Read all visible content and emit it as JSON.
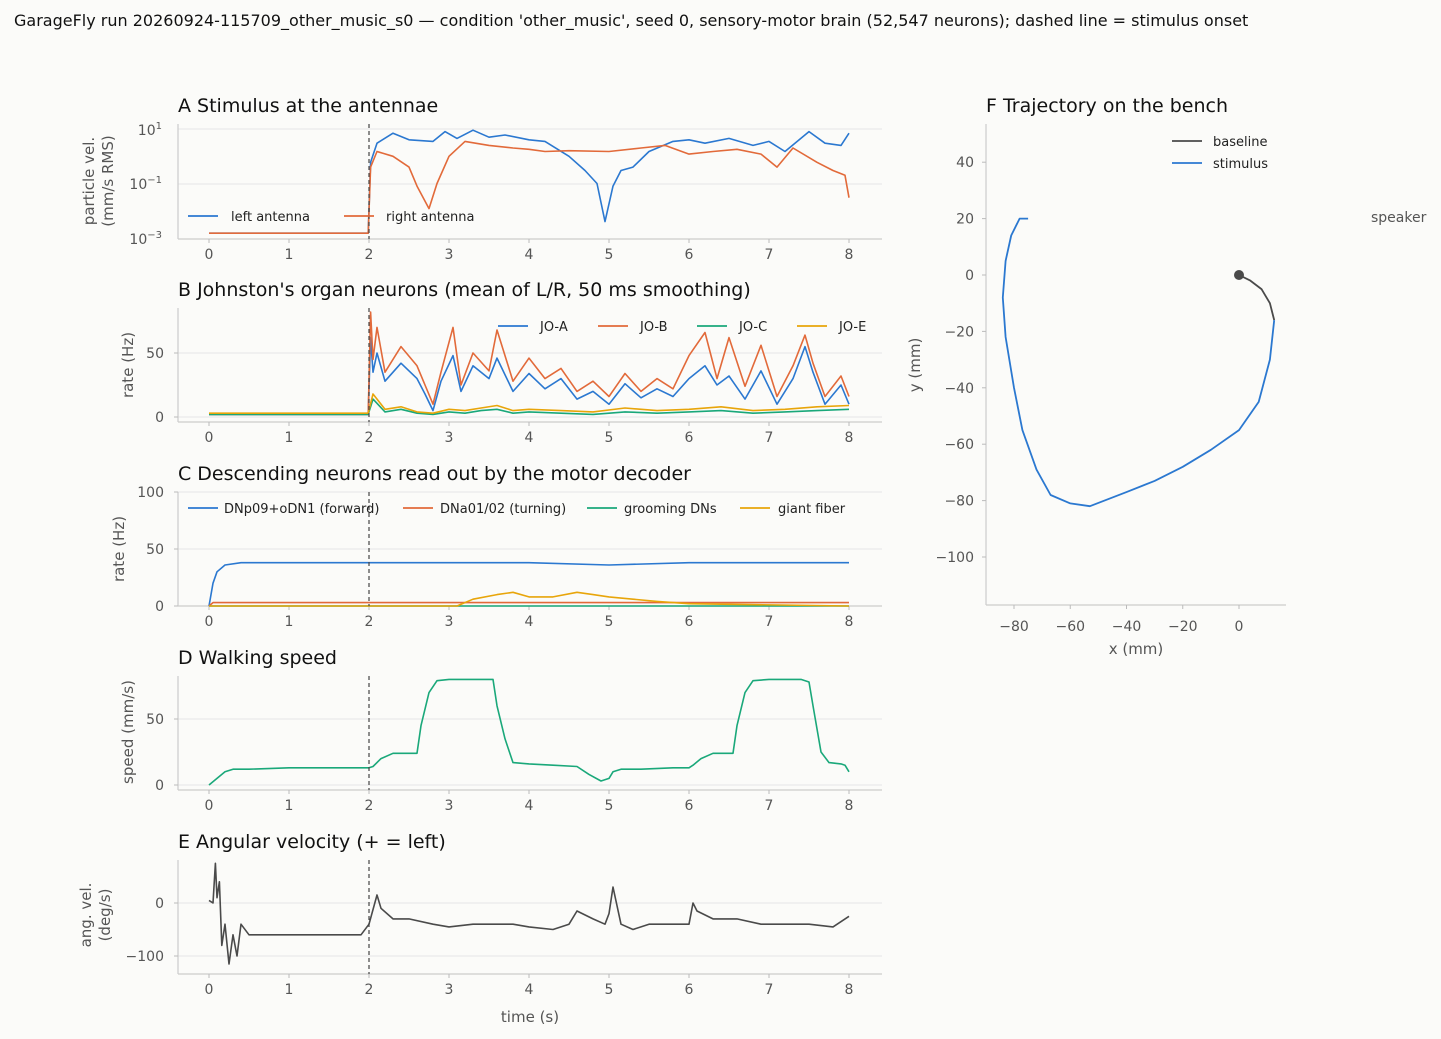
{
  "suptitle": "GarageFly run 20260924-115709_other_music_s0 — condition 'other_music', seed 0, sensory-motor brain (52,547 neurons); dashed line = stimulus onset",
  "colors": {
    "blue": "#2b78d0",
    "orange": "#e26a3a",
    "green": "#1aa87a",
    "yellow": "#e8a50a",
    "dark": "#4a4a4a",
    "grid": "#e6e6e6"
  },
  "chart_data": [
    {
      "id": "A",
      "type": "line",
      "title": "A  Stimulus at the antennae",
      "ylabel_lines": [
        "particle vel.",
        "(mm/s RMS)"
      ],
      "yscale": "log",
      "ylim": [
        0.001,
        10
      ],
      "yticks": [
        "10^1",
        "10^-1",
        "10^-3"
      ],
      "xlim": [
        0,
        8
      ],
      "xticks": [
        "0",
        "1",
        "2",
        "3",
        "4",
        "5",
        "6",
        "7",
        "8"
      ],
      "stimulus_onset_s": 2,
      "legend_location": "lower left",
      "series": [
        {
          "name": "left antenna",
          "color": "#2b78d0",
          "x": [
            0,
            1.99,
            2.02,
            2.1,
            2.3,
            2.5,
            2.8,
            2.95,
            3.1,
            3.3,
            3.5,
            3.7,
            4,
            4.2,
            4.5,
            4.7,
            4.85,
            4.95,
            5.05,
            5.15,
            5.3,
            5.5,
            5.8,
            6,
            6.2,
            6.5,
            6.8,
            7,
            7.2,
            7.5,
            7.7,
            7.9,
            8.0
          ],
          "y": [
            0.0015,
            0.0015,
            0.6,
            3,
            7,
            4,
            3.5,
            8,
            4.5,
            9,
            5,
            6,
            4,
            3.5,
            1,
            0.3,
            0.1,
            0.004,
            0.08,
            0.3,
            0.4,
            1.5,
            3.5,
            4,
            3,
            4.5,
            2.5,
            3.5,
            1.5,
            8,
            3,
            2.5,
            7
          ]
        },
        {
          "name": "right antenna",
          "color": "#e26a3a",
          "x": [
            0,
            1.99,
            2.02,
            2.1,
            2.3,
            2.5,
            2.6,
            2.75,
            2.85,
            3.0,
            3.2,
            3.5,
            3.8,
            4.0,
            4.2,
            4.5,
            5,
            5.4,
            5.7,
            6,
            6.3,
            6.6,
            6.9,
            7.1,
            7.3,
            7.6,
            7.8,
            7.95,
            8.0
          ],
          "y": [
            0.0015,
            0.0015,
            0.4,
            1.5,
            1,
            0.4,
            0.08,
            0.012,
            0.1,
            1,
            3.5,
            2.5,
            2,
            1.8,
            1.5,
            1.6,
            1.5,
            2,
            2.5,
            1.2,
            1.5,
            1.8,
            1.2,
            0.4,
            2,
            0.6,
            0.3,
            0.2,
            0.03
          ]
        }
      ]
    },
    {
      "id": "B",
      "type": "line",
      "title": "B  Johnston's organ neurons (mean of L/R, 50 ms smoothing)",
      "ylabel": "rate (Hz)",
      "ylim": [
        0,
        85
      ],
      "yticks": [
        0,
        50
      ],
      "xlim": [
        0,
        8
      ],
      "xticks": [
        "0",
        "1",
        "2",
        "3",
        "4",
        "5",
        "6",
        "7",
        "8"
      ],
      "stimulus_onset_s": 2,
      "legend_location": "upper right",
      "series": [
        {
          "name": "JO-A",
          "color": "#2b78d0",
          "x": [
            0,
            1.99,
            2.02,
            2.05,
            2.1,
            2.2,
            2.4,
            2.6,
            2.7,
            2.8,
            2.9,
            3.05,
            3.15,
            3.3,
            3.5,
            3.6,
            3.8,
            4,
            4.2,
            4.4,
            4.6,
            4.8,
            5,
            5.2,
            5.4,
            5.6,
            5.8,
            6,
            6.2,
            6.35,
            6.5,
            6.7,
            6.9,
            7.1,
            7.3,
            7.45,
            7.55,
            7.7,
            7.9,
            8.0
          ],
          "y": [
            2,
            2,
            62,
            35,
            50,
            28,
            42,
            30,
            18,
            5,
            28,
            48,
            20,
            40,
            30,
            46,
            20,
            34,
            22,
            30,
            14,
            20,
            10,
            26,
            15,
            22,
            16,
            30,
            40,
            25,
            32,
            14,
            36,
            10,
            30,
            55,
            35,
            10,
            25,
            10
          ]
        },
        {
          "name": "JO-B",
          "color": "#e26a3a",
          "x": [
            0,
            1.99,
            2.02,
            2.05,
            2.1,
            2.2,
            2.4,
            2.6,
            2.7,
            2.8,
            2.9,
            3.05,
            3.15,
            3.3,
            3.5,
            3.6,
            3.8,
            4,
            4.2,
            4.4,
            4.6,
            4.8,
            5,
            5.2,
            5.4,
            5.6,
            5.8,
            6,
            6.2,
            6.35,
            6.5,
            6.7,
            6.9,
            7.1,
            7.3,
            7.45,
            7.55,
            7.7,
            7.9,
            8.0
          ],
          "y": [
            2,
            2,
            82,
            45,
            70,
            35,
            55,
            40,
            25,
            10,
            35,
            70,
            25,
            50,
            36,
            68,
            28,
            46,
            30,
            38,
            20,
            28,
            16,
            34,
            20,
            30,
            22,
            48,
            66,
            30,
            62,
            24,
            56,
            16,
            40,
            64,
            42,
            16,
            32,
            16
          ]
        },
        {
          "name": "JO-C",
          "color": "#1aa87a",
          "x": [
            0,
            1.99,
            2.05,
            2.2,
            2.4,
            2.6,
            2.8,
            3.0,
            3.2,
            3.4,
            3.6,
            3.8,
            4.0,
            4.4,
            4.8,
            5.2,
            5.6,
            6.0,
            6.4,
            6.8,
            7.2,
            7.6,
            8.0
          ],
          "y": [
            2,
            2,
            14,
            4,
            6,
            3,
            2,
            4,
            3,
            5,
            6,
            3,
            4,
            3,
            2,
            4,
            3,
            4,
            5,
            3,
            4,
            5,
            6
          ]
        },
        {
          "name": "JO-E",
          "color": "#e8a50a",
          "x": [
            0,
            1.99,
            2.05,
            2.2,
            2.4,
            2.6,
            2.8,
            3.0,
            3.2,
            3.4,
            3.6,
            3.8,
            4.0,
            4.4,
            4.8,
            5.2,
            5.6,
            6.0,
            6.4,
            6.8,
            7.2,
            7.6,
            8.0
          ],
          "y": [
            3,
            3,
            18,
            6,
            8,
            4,
            3,
            6,
            5,
            7,
            9,
            5,
            6,
            5,
            4,
            7,
            5,
            6,
            8,
            5,
            6,
            8,
            9
          ]
        }
      ]
    },
    {
      "id": "C",
      "type": "line",
      "title": "C  Descending neurons read out by the motor decoder",
      "ylabel": "rate (Hz)",
      "ylim": [
        0,
        100
      ],
      "yticks": [
        0,
        50,
        100
      ],
      "xlim": [
        0,
        8
      ],
      "xticks": [
        "0",
        "1",
        "2",
        "3",
        "4",
        "5",
        "6",
        "7",
        "8"
      ],
      "stimulus_onset_s": 2,
      "legend_location": "upper center",
      "series": [
        {
          "name": "DNp09+oDN1 (forward)",
          "color": "#2b78d0",
          "x": [
            0,
            0.05,
            0.1,
            0.2,
            0.4,
            1,
            2,
            3,
            4,
            5,
            6,
            7,
            8
          ],
          "y": [
            0,
            20,
            30,
            36,
            38,
            38,
            38,
            38,
            38,
            36,
            38,
            38,
            38
          ]
        },
        {
          "name": "DNa01/02 (turning)",
          "color": "#e26a3a",
          "x": [
            0,
            0.05,
            0.1,
            2,
            3,
            4,
            5,
            6,
            7,
            8
          ],
          "y": [
            0,
            3,
            3,
            3,
            3,
            3,
            3,
            3,
            3,
            3
          ]
        },
        {
          "name": "grooming DNs",
          "color": "#1aa87a",
          "x": [
            0,
            8
          ],
          "y": [
            0,
            0
          ]
        },
        {
          "name": "giant fiber",
          "color": "#e8a50a",
          "x": [
            0,
            3.1,
            3.3,
            3.6,
            3.8,
            4.0,
            4.3,
            4.6,
            4.8,
            5.0,
            5.3,
            5.6,
            6.0,
            8
          ],
          "y": [
            0,
            0,
            6,
            10,
            12,
            8,
            8,
            12,
            10,
            8,
            6,
            4,
            2,
            0
          ]
        }
      ]
    },
    {
      "id": "D",
      "type": "line",
      "title": "D  Walking speed",
      "ylabel": "speed (mm/s)",
      "ylim": [
        0,
        85
      ],
      "yticks": [
        0,
        50
      ],
      "xlim": [
        0,
        8
      ],
      "xticks": [
        "0",
        "1",
        "2",
        "3",
        "4",
        "5",
        "6",
        "7",
        "8"
      ],
      "stimulus_onset_s": 2,
      "series": [
        {
          "name": "",
          "color": "#1aa87a",
          "x": [
            0,
            0.1,
            0.2,
            0.3,
            0.5,
            1,
            1.5,
            2,
            2.05,
            2.15,
            2.3,
            2.5,
            2.6,
            2.65,
            2.75,
            2.85,
            3.0,
            3.4,
            3.55,
            3.6,
            3.7,
            3.8,
            4.0,
            4.3,
            4.6,
            4.75,
            4.9,
            5.0,
            5.05,
            5.15,
            5.4,
            5.8,
            6.0,
            6.05,
            6.15,
            6.3,
            6.55,
            6.6,
            6.7,
            6.8,
            7.0,
            7.4,
            7.5,
            7.55,
            7.65,
            7.75,
            7.9,
            7.95,
            8.0
          ],
          "y": [
            0,
            5,
            10,
            12,
            12,
            13,
            13,
            13,
            14,
            20,
            24,
            24,
            24,
            45,
            70,
            79,
            80,
            80,
            80,
            60,
            35,
            17,
            16,
            15,
            14,
            8,
            3,
            5,
            10,
            12,
            12,
            13,
            13,
            15,
            20,
            24,
            24,
            45,
            70,
            79,
            80,
            80,
            78,
            60,
            25,
            17,
            16,
            15,
            10
          ]
        }
      ]
    },
    {
      "id": "E",
      "type": "line",
      "title": "E  Angular velocity (+ = left)",
      "ylabel_lines": [
        "ang. vel.",
        "(deg/s)"
      ],
      "ylim": [
        -130,
        80
      ],
      "yticks": [
        0,
        -100
      ],
      "xlabel": "time (s)",
      "xlim": [
        0,
        8
      ],
      "xticks": [
        "0",
        "1",
        "2",
        "3",
        "4",
        "5",
        "6",
        "7",
        "8"
      ],
      "stimulus_onset_s": 2,
      "series": [
        {
          "name": "",
          "color": "#4a4a4a",
          "x": [
            0,
            0.05,
            0.08,
            0.1,
            0.13,
            0.16,
            0.2,
            0.25,
            0.3,
            0.35,
            0.4,
            0.5,
            1,
            1.5,
            1.9,
            2.0,
            2.1,
            2.15,
            2.3,
            2.5,
            2.8,
            3,
            3.3,
            3.5,
            3.8,
            4,
            4.3,
            4.5,
            4.6,
            4.8,
            4.95,
            5.0,
            5.05,
            5.15,
            5.3,
            5.5,
            6.0,
            6.05,
            6.1,
            6.3,
            6.6,
            6.9,
            7.2,
            7.5,
            7.8,
            8.0
          ],
          "y": [
            5,
            0,
            75,
            10,
            40,
            -80,
            -40,
            -115,
            -60,
            -100,
            -40,
            -60,
            -60,
            -60,
            -60,
            -40,
            15,
            -10,
            -30,
            -30,
            -40,
            -45,
            -40,
            -40,
            -40,
            -45,
            -50,
            -40,
            -15,
            -30,
            -40,
            -20,
            30,
            -40,
            -50,
            -40,
            -40,
            0,
            -15,
            -30,
            -30,
            -40,
            -40,
            -40,
            -45,
            -25
          ]
        }
      ]
    },
    {
      "id": "F",
      "type": "line",
      "title": "F  Trajectory on the bench",
      "xlabel": "x (mm)",
      "ylabel": "y (mm)",
      "xlim": [
        -88,
        17
      ],
      "ylim": [
        -117,
        55
      ],
      "xticks": [
        -80,
        -60,
        -40,
        -20,
        0
      ],
      "yticks": [
        40,
        20,
        0,
        -20,
        -40,
        -60,
        -80,
        -100
      ],
      "annotation": "speaker",
      "legend_location": "upper right",
      "start_point": [
        0,
        0
      ],
      "series": [
        {
          "name": "baseline",
          "color": "#4a4a4a",
          "x": [
            0,
            4,
            8,
            11,
            12.5
          ],
          "y": [
            0,
            -2,
            -5,
            -10,
            -16
          ]
        },
        {
          "name": "stimulus",
          "color": "#2b78d0",
          "x": [
            12.5,
            11,
            7,
            0,
            -10,
            -20,
            -30,
            -40,
            -53,
            -60,
            -67,
            -72,
            -77,
            -80,
            -83,
            -84,
            -83,
            -81,
            -78,
            -75
          ],
          "y": [
            -16,
            -30,
            -45,
            -55,
            -62,
            -68,
            -73,
            -77,
            -82,
            -81,
            -78,
            -69,
            -55,
            -40,
            -22,
            -8,
            5,
            14,
            20,
            20
          ]
        }
      ]
    }
  ]
}
